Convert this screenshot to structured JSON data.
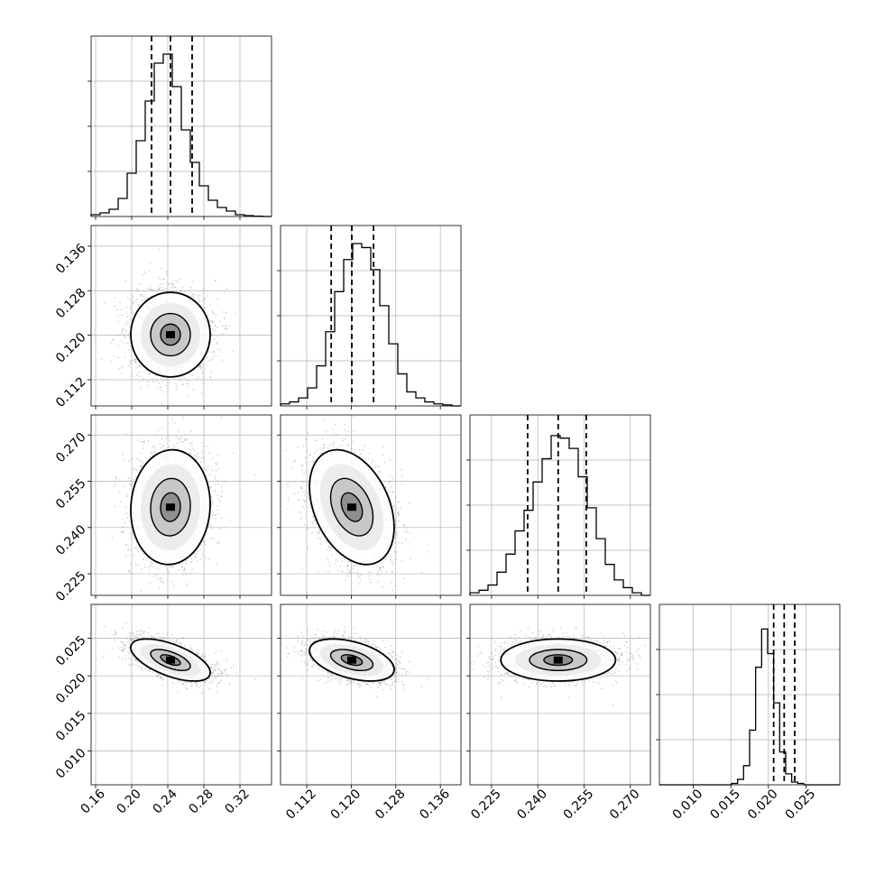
{
  "chart_data": {
    "type": "corner",
    "title": "",
    "parameters": [
      {
        "index": 0,
        "range": [
          0.155,
          0.355
        ],
        "ticks": [
          0.16,
          0.2,
          0.24,
          0.28,
          0.32
        ],
        "tick_labels": [
          "0.16",
          "0.20",
          "0.24",
          "0.28",
          "0.32"
        ],
        "quantiles": [
          0.222,
          0.243,
          0.267
        ],
        "hist": {
          "edges_start": 0.155,
          "bin_width": 0.01,
          "counts": [
            1,
            2,
            4,
            10,
            24,
            42,
            64,
            85,
            90,
            72,
            48,
            30,
            17,
            9,
            5,
            3,
            1,
            0.5,
            0.2,
            0
          ],
          "max": 100
        }
      },
      {
        "index": 1,
        "range": [
          0.1073,
          0.1397
        ],
        "ticks": [
          0.112,
          0.12,
          0.128,
          0.136
        ],
        "tick_labels": [
          "0.112",
          "0.120",
          "0.128",
          "0.136"
        ],
        "quantiles": [
          0.1164,
          0.1201,
          0.124
        ],
        "hist": {
          "edges_start": 0.1073,
          "bin_width": 0.00162,
          "counts": [
            1,
            2,
            4,
            9,
            20,
            37,
            57,
            73,
            81,
            79,
            68,
            50,
            31,
            16,
            7,
            4,
            2,
            1,
            0.5,
            0
          ],
          "max": 90
        }
      },
      {
        "index": 2,
        "range": [
          0.218,
          0.2765
        ],
        "ticks": [
          0.225,
          0.24,
          0.255,
          0.27
        ],
        "tick_labels": [
          "0.225",
          "0.240",
          "0.255",
          "0.270"
        ],
        "quantiles": [
          0.2367,
          0.2466,
          0.2557
        ],
        "hist": {
          "edges_start": 0.218,
          "bin_width": 0.002925,
          "counts": [
            1,
            2,
            4,
            9,
            16,
            25,
            33,
            44,
            53,
            62,
            61,
            57,
            46,
            34,
            22,
            12,
            6,
            3,
            1,
            0
          ],
          "max": 70
        }
      },
      {
        "index": 3,
        "range": [
          0.0055,
          0.0295
        ],
        "ticks": [
          0.01,
          0.015,
          0.02,
          0.025
        ],
        "tick_labels": [
          "0.010",
          "0.015",
          "0.020",
          "0.025"
        ],
        "quantiles": [
          0.0207,
          0.0221,
          0.0235
        ],
        "hist": {
          "edges_start": 0.0055,
          "bin_width": 0.0008,
          "counts": [
            0,
            0,
            0,
            0,
            0,
            0,
            0,
            0,
            0,
            0,
            0,
            0,
            0.5,
            2,
            7,
            20,
            43,
            57,
            48,
            30,
            12,
            4,
            1,
            0.5,
            0,
            0,
            0,
            0,
            0,
            0
          ],
          "max": 66
        }
      }
    ],
    "pairs": [
      {
        "x": 0,
        "y": 1,
        "center": [
          0.243,
          0.1201
        ],
        "sigma": [
          0.022,
          0.0038
        ],
        "rho": 0.0
      },
      {
        "x": 0,
        "y": 2,
        "center": [
          0.243,
          0.2466
        ],
        "sigma": [
          0.022,
          0.0093
        ],
        "rho": 0.05
      },
      {
        "x": 1,
        "y": 2,
        "center": [
          0.1201,
          0.2466
        ],
        "sigma": [
          0.0038,
          0.0093
        ],
        "rho": -0.35
      },
      {
        "x": 0,
        "y": 3,
        "center": [
          0.243,
          0.0221
        ],
        "sigma": [
          0.022,
          0.0014
        ],
        "rho": -0.6
      },
      {
        "x": 1,
        "y": 3,
        "center": [
          0.1201,
          0.0221
        ],
        "sigma": [
          0.0038,
          0.0014
        ],
        "rho": -0.45
      },
      {
        "x": 2,
        "y": 3,
        "center": [
          0.2466,
          0.0221
        ],
        "sigma": [
          0.0093,
          0.0014
        ],
        "rho": 0.0
      }
    ],
    "contour_levels_sigma": [
      0.5,
      1.0,
      1.5,
      2.0
    ],
    "grid": true,
    "colors": {
      "line": "#000000",
      "grid": "#b0b0b0",
      "density": "#000000",
      "points": "#8c8c8c"
    }
  }
}
